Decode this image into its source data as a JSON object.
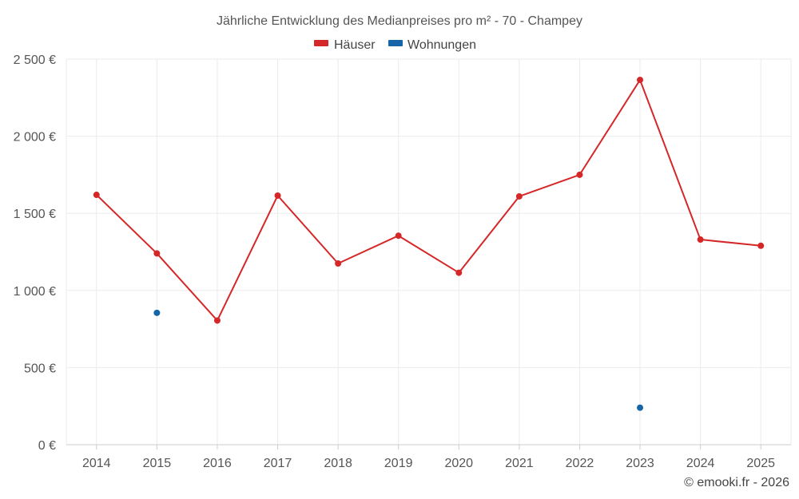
{
  "chart_data": {
    "type": "line",
    "title": "Jährliche Entwicklung des Medianpreises pro m² - 70 - Champey",
    "categories": [
      "2014",
      "2015",
      "2016",
      "2017",
      "2018",
      "2019",
      "2020",
      "2021",
      "2022",
      "2023",
      "2024",
      "2025"
    ],
    "series": [
      {
        "name": "Häuser",
        "color": "#d62728",
        "values": [
          1620,
          1240,
          805,
          1615,
          1175,
          1355,
          1115,
          1610,
          1750,
          2365,
          1330,
          1290
        ]
      },
      {
        "name": "Wohnungen",
        "color": "#1565a8",
        "values": [
          null,
          855,
          null,
          null,
          null,
          null,
          null,
          null,
          null,
          240,
          null,
          null
        ]
      }
    ],
    "ylim": [
      0,
      2500
    ],
    "yticks": [
      0,
      500,
      1000,
      1500,
      2000,
      2500
    ],
    "ytick_labels": [
      "0 €",
      "500 €",
      "1 000 €",
      "1 500 €",
      "2 000 €",
      "2 500 €"
    ],
    "xlabel": "",
    "ylabel": "",
    "legend_position": "top-center",
    "grid": true
  },
  "credit": "© emooki.fr - 2026"
}
